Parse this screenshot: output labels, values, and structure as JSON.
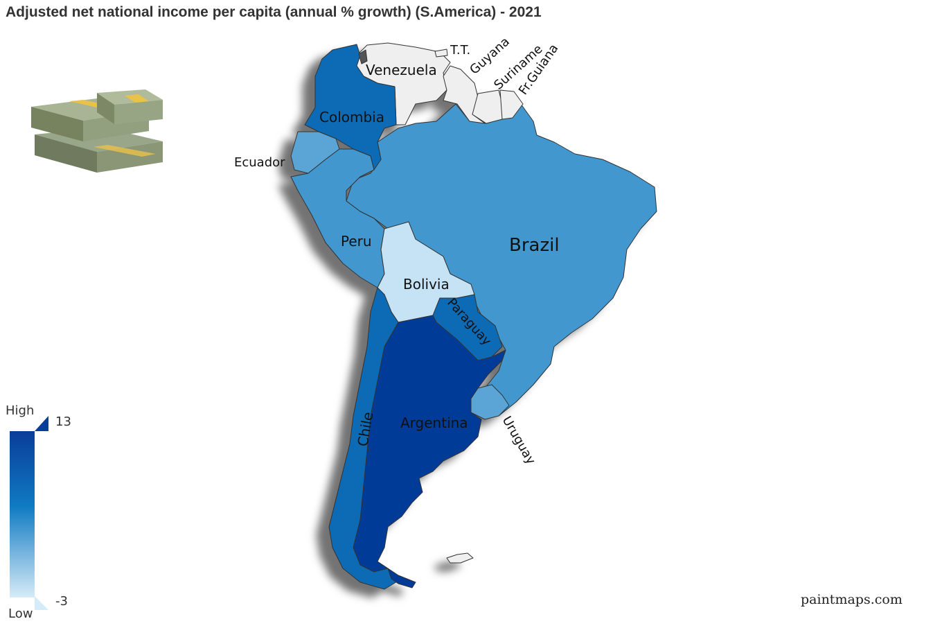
{
  "title": "Adjusted net national income per capita (annual % growth) (S.America) - 2021",
  "credit": "paintmaps.com",
  "icons": {
    "illustration": "money-stack-icon"
  },
  "legend": {
    "high_label": "High",
    "low_label": "Low",
    "max_value": "13",
    "min_value": "-3",
    "color_high": "#0a3d9a",
    "color_mid": "#0f7ac2",
    "color_low": "#d6ebf8"
  },
  "countries": {
    "venezuela": "Venezuela",
    "colombia": "Colombia",
    "ecuador": "Ecuador",
    "peru": "Peru",
    "brazil": "Brazil",
    "bolivia": "Bolivia",
    "paraguay": "Paraguay",
    "chile": "Chile",
    "argentina": "Argentina",
    "uruguay": "Uruguay",
    "guyana": "Guyana",
    "suriname": "Suriname",
    "fr_guiana": "Fr.Guiana",
    "tt": "T.T."
  },
  "colors": {
    "no_data": "#efefef",
    "brazil": "#4297ce",
    "peru": "#4297ce",
    "ecuador": "#5aa5d6",
    "uruguay": "#5aa5d6",
    "colombia": "#0a6bb5",
    "chile": "#0a6bb5",
    "paraguay": "#0a6bb5",
    "argentina": "#063b98",
    "bolivia": "#c6e2f5"
  }
}
